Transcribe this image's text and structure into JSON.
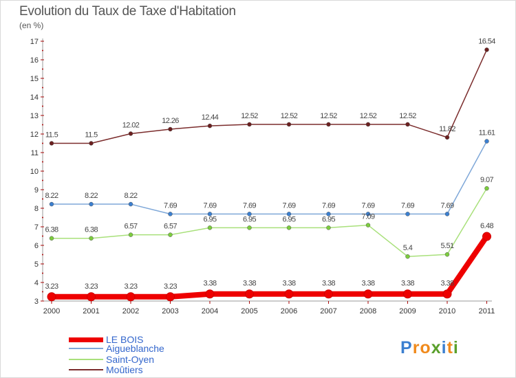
{
  "header": {
    "title": "Evolution du Taux de Taxe d'Habitation",
    "unit": "(en %)"
  },
  "logo": {
    "letters": [
      "P",
      "r",
      "o",
      "x",
      "i",
      "t",
      "i"
    ],
    "colors": [
      "#3b7fd0",
      "#f08a1c",
      "#f08a1c",
      "#5aa02c",
      "#3b7fd0",
      "#f08a1c",
      "#5aa02c"
    ]
  },
  "chart_data": {
    "type": "line",
    "title": "Evolution du Taux de Taxe d'Habitation",
    "ylabel": "(en %)",
    "xlabel": "",
    "x": [
      "2000",
      "2001",
      "2002",
      "2003",
      "2004",
      "2005",
      "2006",
      "2007",
      "2008",
      "2009",
      "2010",
      "2011"
    ],
    "ylim": [
      3,
      17
    ],
    "yticks": [
      "3",
      "4",
      "5",
      "6",
      "7",
      "8",
      "9",
      "10",
      "11",
      "12",
      "13",
      "14",
      "15",
      "16",
      "17"
    ],
    "grid": false,
    "legend_position": "bottom-left",
    "series": [
      {
        "name": "Moûtiers",
        "color": "#7a2b2b",
        "marker": "#6b1f1f",
        "values": [
          11.5,
          11.5,
          12.02,
          12.26,
          12.44,
          12.52,
          12.52,
          12.52,
          12.52,
          12.52,
          11.82,
          16.54
        ],
        "labels": [
          "11.5",
          "11.5",
          "12.02",
          "12.26",
          "12.44",
          "12.52",
          "12.52",
          "12.52",
          "12.52",
          "12.52",
          "11.82",
          "16.54"
        ]
      },
      {
        "name": "Aigueblanche",
        "color": "#7ea7d8",
        "marker": "#3b7fd0",
        "values": [
          8.22,
          8.22,
          8.22,
          7.69,
          7.69,
          7.69,
          7.69,
          7.69,
          7.69,
          7.69,
          7.69,
          11.61
        ],
        "labels": [
          "8.22",
          "8.22",
          "8.22",
          "7.69",
          "7.69",
          "7.69",
          "7.69",
          "7.69",
          "7.69",
          "7.69",
          "7.69",
          "11.61"
        ]
      },
      {
        "name": "Saint-Oyen",
        "color": "#a8e07a",
        "marker": "#7ccc3e",
        "values": [
          6.38,
          6.38,
          6.57,
          6.57,
          6.95,
          6.95,
          6.95,
          6.95,
          7.09,
          5.4,
          5.51,
          9.07
        ],
        "labels": [
          "6.38",
          "6.38",
          "6.57",
          "6.57",
          "6.95",
          "6.95",
          "6.95",
          "6.95",
          "7.09",
          "5.4",
          "5.51",
          "9.07"
        ]
      },
      {
        "name": "LE BOIS",
        "color": "#ee0000",
        "marker": "#ee0000",
        "values": [
          3.23,
          3.23,
          3.23,
          3.23,
          3.38,
          3.38,
          3.38,
          3.38,
          3.38,
          3.38,
          3.38,
          6.48
        ],
        "labels": [
          "3.23",
          "3.23",
          "3.23",
          "3.23",
          "3.38",
          "3.38",
          "3.38",
          "3.38",
          "3.38",
          "3.38",
          "3.38",
          "6.48"
        ]
      }
    ],
    "legend": [
      "LE BOIS",
      "Aigueblanche",
      "Saint-Oyen",
      "Moûtiers"
    ]
  }
}
